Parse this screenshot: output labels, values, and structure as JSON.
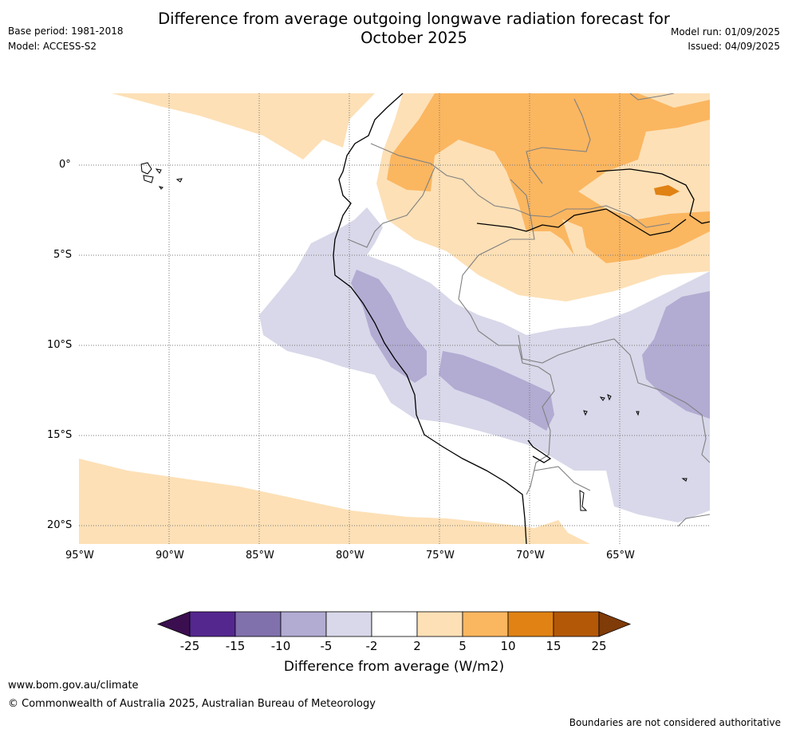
{
  "title_line1": "Difference from average outgoing longwave radiation forecast for",
  "title_line2": "October 2025",
  "base_period": "Base period: 1981-2018",
  "model": "Model: ACCESS-S2",
  "model_run": "Model run: 01/09/2025",
  "issued": "Issued: 04/09/2025",
  "lat_labels": [
    "0°",
    "5°S",
    "10°S",
    "15°S",
    "20°S"
  ],
  "lon_labels": [
    "95°W",
    "90°W",
    "85°W",
    "80°W",
    "75°W",
    "70°W",
    "65°W"
  ],
  "colorbar": {
    "labels": [
      "-25",
      "-15",
      "-10",
      "-5",
      "-2",
      "2",
      "5",
      "10",
      "15",
      "25"
    ],
    "colors": [
      "#3b0f4f",
      "#54278f",
      "#8070ac",
      "#b2abd2",
      "#d8d8ea",
      "#ffffff",
      "#fde0b6",
      "#fbb660",
      "#e08214",
      "#b35806",
      "#7f3b08"
    ],
    "title": "Difference from average (W/m2)"
  },
  "footer": {
    "url": "www.bom.gov.au/climate",
    "copyright": "© Commonwealth of Australia 2025, Australian Bureau of Meteorology",
    "disclaimer": "Boundaries are not considered authoritative"
  }
}
